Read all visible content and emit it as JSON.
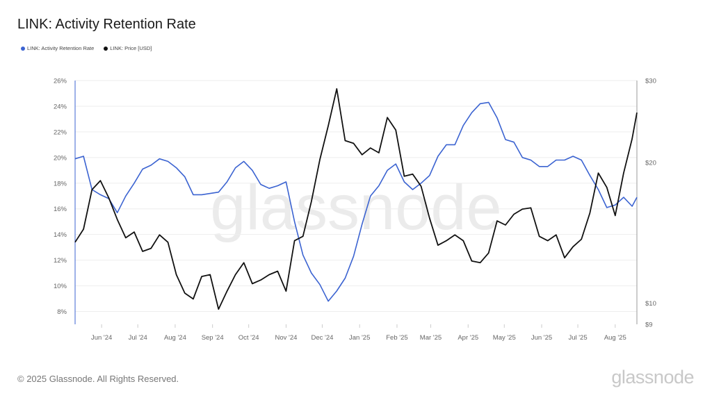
{
  "title": "LINK: Activity Retention Rate",
  "footer": "© 2025 Glassnode. All Rights Reserved.",
  "logo_text": "glassnode",
  "watermark": "glassnode",
  "colors": {
    "retention": "#3b63d1",
    "price": "#111111",
    "grid": "#eeeeee"
  },
  "chart_data": {
    "type": "line",
    "title": "LINK: Activity Retention Rate",
    "legend_position": "top-left",
    "grid": true,
    "x_range": [
      "2024-05-10",
      "2025-08-19"
    ],
    "x_ticks": [
      {
        "date": "2024-06-01",
        "label": "Jun '24"
      },
      {
        "date": "2024-07-01",
        "label": "Jul '24"
      },
      {
        "date": "2024-08-01",
        "label": "Aug '24"
      },
      {
        "date": "2024-09-01",
        "label": "Sep '24"
      },
      {
        "date": "2024-10-01",
        "label": "Oct '24"
      },
      {
        "date": "2024-11-01",
        "label": "Nov '24"
      },
      {
        "date": "2024-12-01",
        "label": "Dec '24"
      },
      {
        "date": "2025-01-01",
        "label": "Jan '25"
      },
      {
        "date": "2025-02-01",
        "label": "Feb '25"
      },
      {
        "date": "2025-03-01",
        "label": "Mar '25"
      },
      {
        "date": "2025-04-01",
        "label": "Apr '25"
      },
      {
        "date": "2025-05-01",
        "label": "May '25"
      },
      {
        "date": "2025-06-01",
        "label": "Jun '25"
      },
      {
        "date": "2025-07-01",
        "label": "Jul '25"
      },
      {
        "date": "2025-08-01",
        "label": "Aug '25"
      }
    ],
    "y_left": {
      "scale": "linear",
      "range": [
        7,
        26
      ],
      "ticks": [
        8,
        10,
        12,
        14,
        16,
        18,
        20,
        22,
        24,
        26
      ],
      "tick_labels": [
        "8%",
        "10%",
        "12%",
        "14%",
        "16%",
        "18%",
        "20%",
        "22%",
        "24%",
        "26%"
      ]
    },
    "y_right": {
      "scale": "log",
      "range": [
        9,
        30
      ],
      "ticks": [
        9,
        10,
        20,
        30
      ],
      "tick_labels": [
        "$9",
        "$10",
        "$20",
        "$30"
      ]
    },
    "x": [
      "2024-05-10",
      "2024-05-17",
      "2024-05-24",
      "2024-05-31",
      "2024-06-07",
      "2024-06-14",
      "2024-06-21",
      "2024-06-28",
      "2024-07-05",
      "2024-07-12",
      "2024-07-19",
      "2024-07-26",
      "2024-08-02",
      "2024-08-09",
      "2024-08-16",
      "2024-08-23",
      "2024-08-30",
      "2024-09-06",
      "2024-09-13",
      "2024-09-20",
      "2024-09-27",
      "2024-10-04",
      "2024-10-11",
      "2024-10-18",
      "2024-10-25",
      "2024-11-01",
      "2024-11-08",
      "2024-11-15",
      "2024-11-22",
      "2024-11-29",
      "2024-12-06",
      "2024-12-13",
      "2024-12-20",
      "2024-12-27",
      "2025-01-03",
      "2025-01-10",
      "2025-01-17",
      "2025-01-24",
      "2025-01-31",
      "2025-02-07",
      "2025-02-14",
      "2025-02-21",
      "2025-02-28",
      "2025-03-07",
      "2025-03-14",
      "2025-03-21",
      "2025-03-28",
      "2025-04-04",
      "2025-04-11",
      "2025-04-18",
      "2025-04-25",
      "2025-05-02",
      "2025-05-09",
      "2025-05-16",
      "2025-05-23",
      "2025-05-30",
      "2025-06-06",
      "2025-06-13",
      "2025-06-20",
      "2025-06-27",
      "2025-07-04",
      "2025-07-11",
      "2025-07-18",
      "2025-07-25",
      "2025-08-01",
      "2025-08-08",
      "2025-08-15",
      "2025-08-19"
    ],
    "series": [
      {
        "name": "LINK: Activity Retention Rate",
        "axis": "left",
        "unit": "%",
        "values": [
          19.9,
          20.1,
          17.5,
          17.1,
          16.8,
          15.7,
          17.0,
          18.0,
          19.1,
          19.4,
          19.9,
          19.7,
          19.2,
          18.5,
          17.1,
          17.1,
          17.2,
          17.3,
          18.1,
          19.2,
          19.7,
          19.0,
          17.9,
          17.6,
          17.8,
          18.1,
          15.0,
          12.4,
          11.0,
          10.1,
          8.8,
          9.6,
          10.6,
          12.3,
          14.8,
          17.0,
          17.8,
          19.0,
          19.5,
          18.1,
          17.5,
          18.0,
          18.6,
          20.1,
          21.0,
          21.0,
          22.5,
          23.5,
          24.2,
          24.3,
          23.1,
          21.4,
          21.2,
          20.0,
          19.8,
          19.3,
          19.3,
          19.8,
          19.8,
          20.1,
          19.8,
          18.6,
          17.5,
          16.1,
          16.3,
          16.9,
          16.2,
          16.9
        ]
      },
      {
        "name": "LINK: Price [USD]",
        "axis": "right",
        "unit": "USD",
        "values": [
          13.5,
          14.4,
          17.5,
          18.3,
          16.8,
          15.1,
          13.8,
          14.2,
          12.9,
          13.1,
          14.0,
          13.5,
          11.5,
          10.5,
          10.2,
          11.4,
          11.5,
          9.7,
          10.6,
          11.5,
          12.2,
          11.0,
          11.2,
          11.5,
          11.7,
          10.6,
          13.6,
          13.9,
          16.5,
          20.3,
          24.0,
          28.8,
          22.3,
          22.0,
          20.8,
          21.5,
          21.0,
          25.0,
          23.5,
          18.7,
          18.9,
          17.8,
          15.2,
          13.3,
          13.6,
          14.0,
          13.6,
          12.3,
          12.2,
          12.8,
          15.0,
          14.7,
          15.5,
          15.9,
          16.0,
          13.9,
          13.6,
          14.0,
          12.5,
          13.2,
          13.7,
          15.6,
          19.0,
          17.7,
          15.4,
          19.0,
          22.5,
          25.6
        ]
      }
    ]
  }
}
